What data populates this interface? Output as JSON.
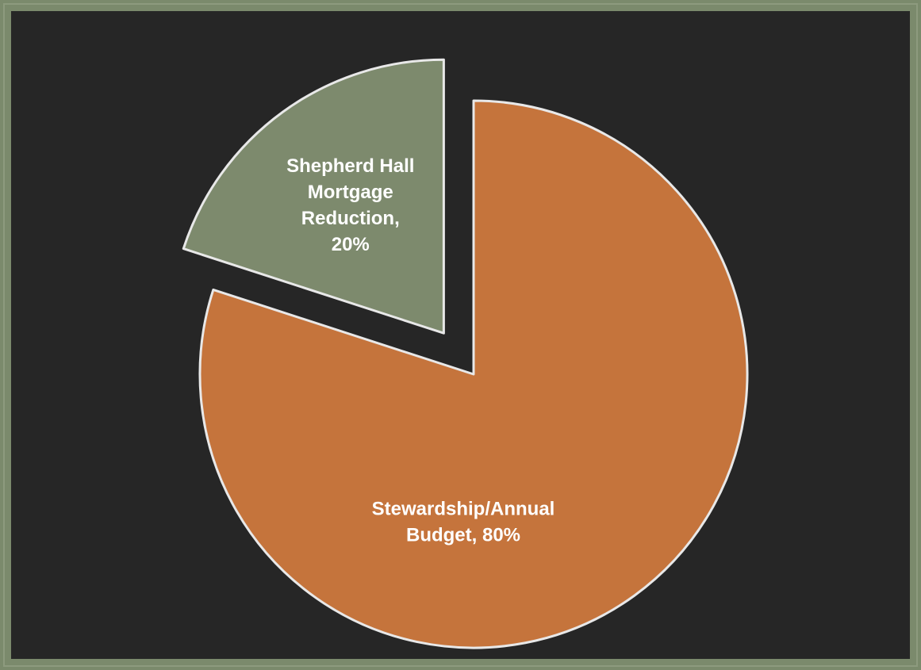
{
  "chart_data": {
    "type": "pie",
    "exploded": true,
    "slices": [
      {
        "label": "Shepherd Hall Mortgage Reduction",
        "value": 20,
        "display_lines": [
          "Shepherd Hall",
          "Mortgage",
          "Reduction,",
          "20%"
        ],
        "color": "#7d8a6d"
      },
      {
        "label": "Stewardship/Annual Budget",
        "value": 80,
        "display_lines": [
          "Stewardship/Annual",
          "Budget, 80%"
        ],
        "color": "#c5743c"
      }
    ],
    "slice_outline_color": "#e8e8e8",
    "background_color": "#262626",
    "frame_color": "#7b8a6c"
  }
}
